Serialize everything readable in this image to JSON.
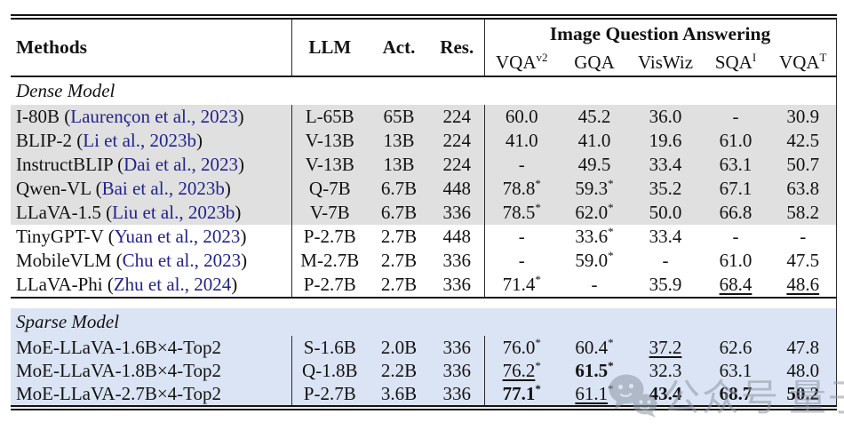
{
  "colors": {
    "row_gray": "#e0e0e0",
    "sparse_blue": "#dbe4f4",
    "citation_navy": "#23238e",
    "rule_black": "#141414",
    "watermark_gray": "#8e96a3"
  },
  "header": {
    "methods": "Methods",
    "llm": "LLM",
    "act": "Act.",
    "res": "Res.",
    "group": "Image Question Answering",
    "benchmarks": [
      {
        "base": "VQA",
        "sup": "v2"
      },
      {
        "base": "GQA",
        "sup": ""
      },
      {
        "base": "VisWiz",
        "sup": ""
      },
      {
        "base": "SQA",
        "sup": "I"
      },
      {
        "base": "VQA",
        "sup": "T"
      }
    ]
  },
  "table": {
    "sections": [
      {
        "label": "Dense Model",
        "shade": "",
        "spacer_before": false,
        "rows": [
          {
            "method": "I-80B",
            "cite": "Laurençon et al., 2023",
            "shade": "gray",
            "llm": "L-65B",
            "act": "65B",
            "res": "224",
            "metrics": [
              {
                "v": "60.0"
              },
              {
                "v": "45.2"
              },
              {
                "v": "36.0"
              },
              {
                "v": "-"
              },
              {
                "v": "30.9"
              }
            ]
          },
          {
            "method": "BLIP-2",
            "cite": "Li et al., 2023b",
            "shade": "gray",
            "llm": "V-13B",
            "act": "13B",
            "res": "224",
            "metrics": [
              {
                "v": "41.0"
              },
              {
                "v": "41.0"
              },
              {
                "v": "19.6"
              },
              {
                "v": "61.0"
              },
              {
                "v": "42.5"
              }
            ]
          },
          {
            "method": "InstructBLIP",
            "cite": "Dai et al., 2023",
            "shade": "gray",
            "llm": "V-13B",
            "act": "13B",
            "res": "224",
            "metrics": [
              {
                "v": "-"
              },
              {
                "v": "49.5"
              },
              {
                "v": "33.4"
              },
              {
                "v": "63.1"
              },
              {
                "v": "50.7"
              }
            ]
          },
          {
            "method": "Qwen-VL",
            "cite": "Bai et al., 2023b",
            "shade": "gray",
            "llm": "Q-7B",
            "act": "6.7B",
            "res": "448",
            "metrics": [
              {
                "v": "78.8",
                "star": true
              },
              {
                "v": "59.3",
                "star": true
              },
              {
                "v": "35.2"
              },
              {
                "v": "67.1"
              },
              {
                "v": "63.8"
              }
            ]
          },
          {
            "method": "LLaVA-1.5",
            "cite": "Liu et al., 2023b",
            "shade": "gray",
            "llm": "V-7B",
            "act": "6.7B",
            "res": "336",
            "metrics": [
              {
                "v": "78.5",
                "star": true
              },
              {
                "v": "62.0",
                "star": true
              },
              {
                "v": "50.0"
              },
              {
                "v": "66.8"
              },
              {
                "v": "58.2"
              }
            ]
          },
          {
            "method": "TinyGPT-V",
            "cite": "Yuan et al., 2023",
            "shade": "",
            "llm": "P-2.7B",
            "act": "2.7B",
            "res": "448",
            "metrics": [
              {
                "v": "-"
              },
              {
                "v": "33.6",
                "star": true
              },
              {
                "v": "33.4"
              },
              {
                "v": "-"
              },
              {
                "v": "-"
              }
            ]
          },
          {
            "method": "MobileVLM",
            "cite": "Chu et al., 2023",
            "shade": "",
            "llm": "M-2.7B",
            "act": "2.7B",
            "res": "336",
            "metrics": [
              {
                "v": "-"
              },
              {
                "v": "59.0",
                "star": true
              },
              {
                "v": "-"
              },
              {
                "v": "61.0"
              },
              {
                "v": "47.5"
              }
            ]
          },
          {
            "method": "LLaVA-Phi",
            "cite": "Zhu et al., 2024",
            "shade": "",
            "llm": "P-2.7B",
            "act": "2.7B",
            "res": "336",
            "metrics": [
              {
                "v": "71.4",
                "star": true
              },
              {
                "v": "-"
              },
              {
                "v": "35.9"
              },
              {
                "v": "68.4",
                "under": true
              },
              {
                "v": "48.6",
                "under": true
              }
            ]
          }
        ]
      },
      {
        "label": "Sparse Model",
        "shade": "blue",
        "spacer_before": true,
        "rows": [
          {
            "method": "MoE-LLaVA-1.6B×4-Top2",
            "cite": null,
            "shade": "blue",
            "llm": "S-1.6B",
            "act": "2.0B",
            "res": "336",
            "metrics": [
              {
                "v": "76.0",
                "star": true
              },
              {
                "v": "60.4",
                "star": true
              },
              {
                "v": "37.2",
                "under": true
              },
              {
                "v": "62.6"
              },
              {
                "v": "47.8"
              }
            ]
          },
          {
            "method": "MoE-LLaVA-1.8B×4-Top2",
            "cite": null,
            "shade": "blue",
            "llm": "Q-1.8B",
            "act": "2.2B",
            "res": "336",
            "metrics": [
              {
                "v": "76.2",
                "star": true,
                "under": true
              },
              {
                "v": "61.5",
                "star": true,
                "bold": true
              },
              {
                "v": "32.3"
              },
              {
                "v": "63.1"
              },
              {
                "v": "48.0"
              }
            ]
          },
          {
            "method": "MoE-LLaVA-2.7B×4-Top2",
            "cite": null,
            "shade": "blue",
            "llm": "P-2.7B",
            "act": "3.6B",
            "res": "336",
            "metrics": [
              {
                "v": "77.1",
                "star": true,
                "bold": true
              },
              {
                "v": "61.1",
                "star": true,
                "under": true
              },
              {
                "v": "43.4",
                "bold": true
              },
              {
                "v": "68.7",
                "bold": true
              },
              {
                "v": "50.2",
                "bold": true
              }
            ]
          }
        ]
      }
    ]
  },
  "watermark": {
    "icon": "wechat-icon",
    "text1": "公众号",
    "text2": "量子位"
  }
}
